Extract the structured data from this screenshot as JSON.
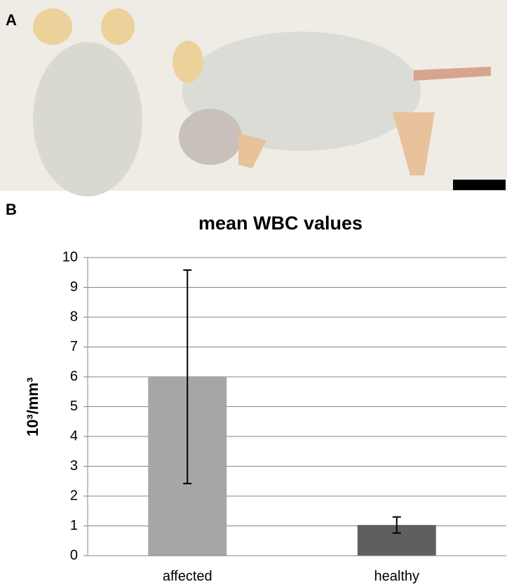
{
  "panel_labels": [
    "A",
    "B"
  ],
  "chart_data": {
    "type": "bar",
    "title": "mean WBC values",
    "y_label": "10³/mm³",
    "categories": [
      "affected",
      "healthy"
    ],
    "values": [
      6.0,
      1.03
    ],
    "errors": [
      3.58,
      0.27
    ],
    "colors": [
      "#a6a6a6",
      "#5f5f5f"
    ],
    "ylim": [
      0,
      10
    ],
    "yticks": [
      0,
      1,
      2,
      3,
      4,
      5,
      6,
      7,
      8,
      9,
      10
    ],
    "grid": true
  }
}
